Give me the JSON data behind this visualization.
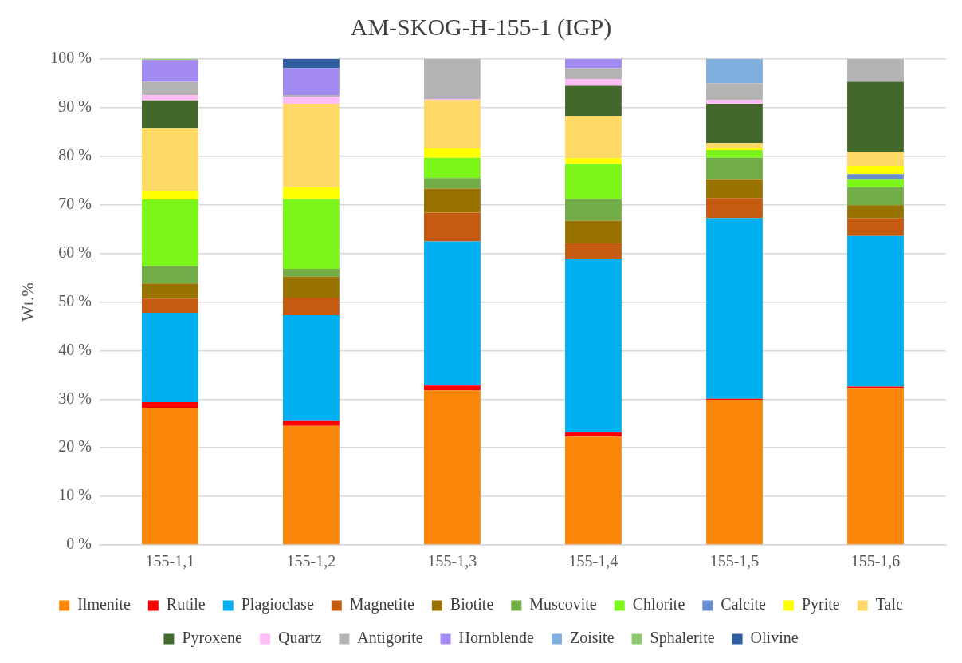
{
  "chart_data": {
    "type": "bar",
    "title": "AM-SKOG-H-155-1 (IGP)",
    "ylabel": "Wt.%",
    "stacked": true,
    "grid": "y",
    "legend": "bottom",
    "categories": [
      "155-1,1",
      "155-1,2",
      "155-1,3",
      "155-1,4",
      "155-1,5",
      "155-1,6"
    ],
    "ylim": [
      0,
      100
    ],
    "yticks": [
      {
        "value": 0,
        "label": "0 %"
      },
      {
        "value": 10,
        "label": "10 %"
      },
      {
        "value": 20,
        "label": "20 %"
      },
      {
        "value": 30,
        "label": "30 %"
      },
      {
        "value": 40,
        "label": "40 %"
      },
      {
        "value": 50,
        "label": "50 %"
      },
      {
        "value": 60,
        "label": "60 %"
      },
      {
        "value": 70,
        "label": "70 %"
      },
      {
        "value": 80,
        "label": "80 %"
      },
      {
        "value": 90,
        "label": "90 %"
      },
      {
        "value": 100,
        "label": "100 %"
      }
    ],
    "series": [
      {
        "name": "Ilmenite",
        "color": "#fb870a",
        "values": [
          28.1,
          24.5,
          31.8,
          22.3,
          29.9,
          32.3
        ]
      },
      {
        "name": "Rutile",
        "color": "#ff0000",
        "values": [
          1.3,
          1.0,
          1.0,
          0.9,
          0.2,
          0.3
        ]
      },
      {
        "name": "Plagioclase",
        "color": "#00b0f0",
        "values": [
          18.4,
          21.8,
          29.7,
          35.6,
          37.2,
          31.0
        ]
      },
      {
        "name": "Magnetite",
        "color": "#c55a11",
        "values": [
          2.9,
          3.6,
          5.9,
          3.3,
          4.1,
          3.6
        ]
      },
      {
        "name": "Biotite",
        "color": "#997300",
        "values": [
          3.1,
          4.3,
          4.9,
          4.6,
          3.9,
          2.7
        ]
      },
      {
        "name": "Muscovite",
        "color": "#70ad47",
        "values": [
          3.6,
          1.6,
          2.2,
          4.5,
          4.4,
          3.7
        ]
      },
      {
        "name": "Chlorite",
        "color": "#7cf518",
        "values": [
          13.7,
          14.4,
          4.2,
          7.2,
          1.6,
          1.7
        ]
      },
      {
        "name": "Calcite",
        "color": "#698ed0",
        "values": [
          0,
          0,
          0,
          0,
          0,
          1.0
        ]
      },
      {
        "name": "Pyrite",
        "color": "#ffff00",
        "values": [
          1.7,
          2.4,
          1.9,
          1.2,
          0.3,
          1.7
        ]
      },
      {
        "name": "Talc",
        "color": "#ffd966",
        "values": [
          12.9,
          17.2,
          10.0,
          8.6,
          1.1,
          2.9
        ]
      },
      {
        "name": "Pyroxene",
        "color": "#43682b",
        "values": [
          5.8,
          0,
          0,
          6.3,
          8.1,
          14.4
        ]
      },
      {
        "name": "Quartz",
        "color": "#ffbdf5",
        "values": [
          1.1,
          1.5,
          0.2,
          1.4,
          0.8,
          0
        ]
      },
      {
        "name": "Antigorite",
        "color": "#b4b4b4",
        "values": [
          2.7,
          0.3,
          8.2,
          2.2,
          3.4,
          4.7
        ]
      },
      {
        "name": "Hornblende",
        "color": "#a28af2",
        "values": [
          4.5,
          5.5,
          0,
          1.9,
          0,
          0
        ]
      },
      {
        "name": "Zoisite",
        "color": "#7eafde",
        "values": [
          0,
          0,
          0,
          0,
          5.0,
          0
        ]
      },
      {
        "name": "Sphalerite",
        "color": "#8fc973",
        "values": [
          0.2,
          0,
          0,
          0,
          0,
          0
        ]
      },
      {
        "name": "Olivine",
        "color": "#2f5ea0",
        "values": [
          0,
          1.9,
          0,
          0,
          0,
          0
        ]
      }
    ]
  }
}
